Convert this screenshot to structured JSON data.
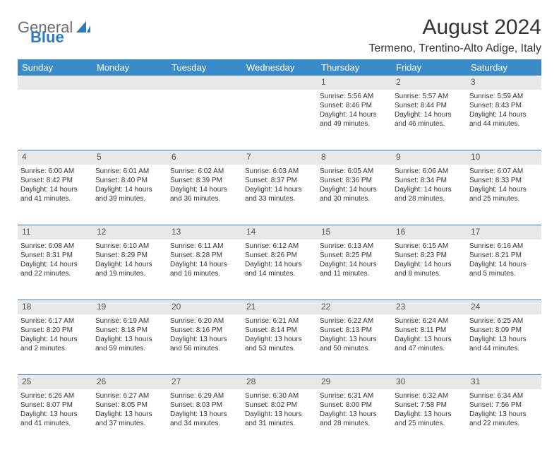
{
  "logo": {
    "general": "General",
    "blue": "Blue"
  },
  "title": "August 2024",
  "location": "Termeno, Trentino-Alto Adige, Italy",
  "weekdays": [
    "Sunday",
    "Monday",
    "Tuesday",
    "Wednesday",
    "Thursday",
    "Friday",
    "Saturday"
  ],
  "colors": {
    "header_bg": "#3b8bc8",
    "header_text": "#ffffff",
    "daynum_bg": "#e8e8e8",
    "border": "#2b7bbf",
    "text": "#333333",
    "logo_gray": "#6b6b6b",
    "logo_blue": "#2b7bbf"
  },
  "weeks": [
    [
      {
        "n": "",
        "sr": "",
        "ss": "",
        "d1": "",
        "d2": ""
      },
      {
        "n": "",
        "sr": "",
        "ss": "",
        "d1": "",
        "d2": ""
      },
      {
        "n": "",
        "sr": "",
        "ss": "",
        "d1": "",
        "d2": ""
      },
      {
        "n": "",
        "sr": "",
        "ss": "",
        "d1": "",
        "d2": ""
      },
      {
        "n": "1",
        "sr": "Sunrise: 5:56 AM",
        "ss": "Sunset: 8:46 PM",
        "d1": "Daylight: 14 hours",
        "d2": "and 49 minutes."
      },
      {
        "n": "2",
        "sr": "Sunrise: 5:57 AM",
        "ss": "Sunset: 8:44 PM",
        "d1": "Daylight: 14 hours",
        "d2": "and 46 minutes."
      },
      {
        "n": "3",
        "sr": "Sunrise: 5:59 AM",
        "ss": "Sunset: 8:43 PM",
        "d1": "Daylight: 14 hours",
        "d2": "and 44 minutes."
      }
    ],
    [
      {
        "n": "4",
        "sr": "Sunrise: 6:00 AM",
        "ss": "Sunset: 8:42 PM",
        "d1": "Daylight: 14 hours",
        "d2": "and 41 minutes."
      },
      {
        "n": "5",
        "sr": "Sunrise: 6:01 AM",
        "ss": "Sunset: 8:40 PM",
        "d1": "Daylight: 14 hours",
        "d2": "and 39 minutes."
      },
      {
        "n": "6",
        "sr": "Sunrise: 6:02 AM",
        "ss": "Sunset: 8:39 PM",
        "d1": "Daylight: 14 hours",
        "d2": "and 36 minutes."
      },
      {
        "n": "7",
        "sr": "Sunrise: 6:03 AM",
        "ss": "Sunset: 8:37 PM",
        "d1": "Daylight: 14 hours",
        "d2": "and 33 minutes."
      },
      {
        "n": "8",
        "sr": "Sunrise: 6:05 AM",
        "ss": "Sunset: 8:36 PM",
        "d1": "Daylight: 14 hours",
        "d2": "and 30 minutes."
      },
      {
        "n": "9",
        "sr": "Sunrise: 6:06 AM",
        "ss": "Sunset: 8:34 PM",
        "d1": "Daylight: 14 hours",
        "d2": "and 28 minutes."
      },
      {
        "n": "10",
        "sr": "Sunrise: 6:07 AM",
        "ss": "Sunset: 8:33 PM",
        "d1": "Daylight: 14 hours",
        "d2": "and 25 minutes."
      }
    ],
    [
      {
        "n": "11",
        "sr": "Sunrise: 6:08 AM",
        "ss": "Sunset: 8:31 PM",
        "d1": "Daylight: 14 hours",
        "d2": "and 22 minutes."
      },
      {
        "n": "12",
        "sr": "Sunrise: 6:10 AM",
        "ss": "Sunset: 8:29 PM",
        "d1": "Daylight: 14 hours",
        "d2": "and 19 minutes."
      },
      {
        "n": "13",
        "sr": "Sunrise: 6:11 AM",
        "ss": "Sunset: 8:28 PM",
        "d1": "Daylight: 14 hours",
        "d2": "and 16 minutes."
      },
      {
        "n": "14",
        "sr": "Sunrise: 6:12 AM",
        "ss": "Sunset: 8:26 PM",
        "d1": "Daylight: 14 hours",
        "d2": "and 14 minutes."
      },
      {
        "n": "15",
        "sr": "Sunrise: 6:13 AM",
        "ss": "Sunset: 8:25 PM",
        "d1": "Daylight: 14 hours",
        "d2": "and 11 minutes."
      },
      {
        "n": "16",
        "sr": "Sunrise: 6:15 AM",
        "ss": "Sunset: 8:23 PM",
        "d1": "Daylight: 14 hours",
        "d2": "and 8 minutes."
      },
      {
        "n": "17",
        "sr": "Sunrise: 6:16 AM",
        "ss": "Sunset: 8:21 PM",
        "d1": "Daylight: 14 hours",
        "d2": "and 5 minutes."
      }
    ],
    [
      {
        "n": "18",
        "sr": "Sunrise: 6:17 AM",
        "ss": "Sunset: 8:20 PM",
        "d1": "Daylight: 14 hours",
        "d2": "and 2 minutes."
      },
      {
        "n": "19",
        "sr": "Sunrise: 6:19 AM",
        "ss": "Sunset: 8:18 PM",
        "d1": "Daylight: 13 hours",
        "d2": "and 59 minutes."
      },
      {
        "n": "20",
        "sr": "Sunrise: 6:20 AM",
        "ss": "Sunset: 8:16 PM",
        "d1": "Daylight: 13 hours",
        "d2": "and 56 minutes."
      },
      {
        "n": "21",
        "sr": "Sunrise: 6:21 AM",
        "ss": "Sunset: 8:14 PM",
        "d1": "Daylight: 13 hours",
        "d2": "and 53 minutes."
      },
      {
        "n": "22",
        "sr": "Sunrise: 6:22 AM",
        "ss": "Sunset: 8:13 PM",
        "d1": "Daylight: 13 hours",
        "d2": "and 50 minutes."
      },
      {
        "n": "23",
        "sr": "Sunrise: 6:24 AM",
        "ss": "Sunset: 8:11 PM",
        "d1": "Daylight: 13 hours",
        "d2": "and 47 minutes."
      },
      {
        "n": "24",
        "sr": "Sunrise: 6:25 AM",
        "ss": "Sunset: 8:09 PM",
        "d1": "Daylight: 13 hours",
        "d2": "and 44 minutes."
      }
    ],
    [
      {
        "n": "25",
        "sr": "Sunrise: 6:26 AM",
        "ss": "Sunset: 8:07 PM",
        "d1": "Daylight: 13 hours",
        "d2": "and 41 minutes."
      },
      {
        "n": "26",
        "sr": "Sunrise: 6:27 AM",
        "ss": "Sunset: 8:05 PM",
        "d1": "Daylight: 13 hours",
        "d2": "and 37 minutes."
      },
      {
        "n": "27",
        "sr": "Sunrise: 6:29 AM",
        "ss": "Sunset: 8:03 PM",
        "d1": "Daylight: 13 hours",
        "d2": "and 34 minutes."
      },
      {
        "n": "28",
        "sr": "Sunrise: 6:30 AM",
        "ss": "Sunset: 8:02 PM",
        "d1": "Daylight: 13 hours",
        "d2": "and 31 minutes."
      },
      {
        "n": "29",
        "sr": "Sunrise: 6:31 AM",
        "ss": "Sunset: 8:00 PM",
        "d1": "Daylight: 13 hours",
        "d2": "and 28 minutes."
      },
      {
        "n": "30",
        "sr": "Sunrise: 6:32 AM",
        "ss": "Sunset: 7:58 PM",
        "d1": "Daylight: 13 hours",
        "d2": "and 25 minutes."
      },
      {
        "n": "31",
        "sr": "Sunrise: 6:34 AM",
        "ss": "Sunset: 7:56 PM",
        "d1": "Daylight: 13 hours",
        "d2": "and 22 minutes."
      }
    ]
  ]
}
